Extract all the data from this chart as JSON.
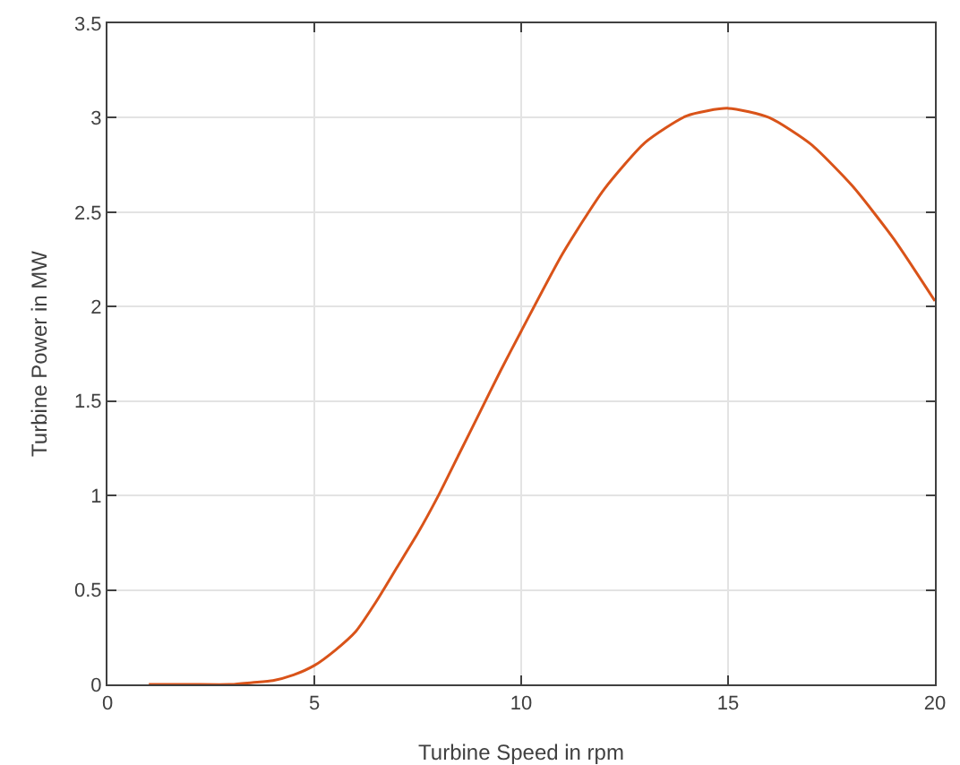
{
  "chart_data": {
    "type": "line",
    "xlabel": "Turbine Speed in rpm",
    "ylabel": "Turbine Power in MW",
    "x": [
      1,
      2,
      3,
      3.5,
      4,
      4.5,
      5,
      5.5,
      6,
      6.5,
      7,
      7.5,
      8,
      8.5,
      9,
      9.5,
      10,
      11,
      12,
      13,
      14,
      15,
      16,
      17,
      18,
      19,
      20
    ],
    "series": [
      {
        "color": "#d95319",
        "values": [
          0,
          0,
          0,
          0.01,
          0.02,
          0.05,
          0.1,
          0.18,
          0.28,
          0.44,
          0.62,
          0.8,
          1.0,
          1.22,
          1.44,
          1.66,
          1.87,
          2.28,
          2.62,
          2.87,
          3.01,
          3.05,
          3.0,
          2.86,
          2.64,
          2.36,
          2.03
        ]
      }
    ],
    "xlim": [
      0,
      20
    ],
    "xticks": [
      0,
      5,
      10,
      15,
      20
    ],
    "ylim": [
      0,
      3.5
    ],
    "yticks": [
      0,
      0.5,
      1,
      1.5,
      2,
      2.5,
      3,
      3.5
    ],
    "grid": true,
    "marker": "none",
    "line_style": "solid"
  }
}
